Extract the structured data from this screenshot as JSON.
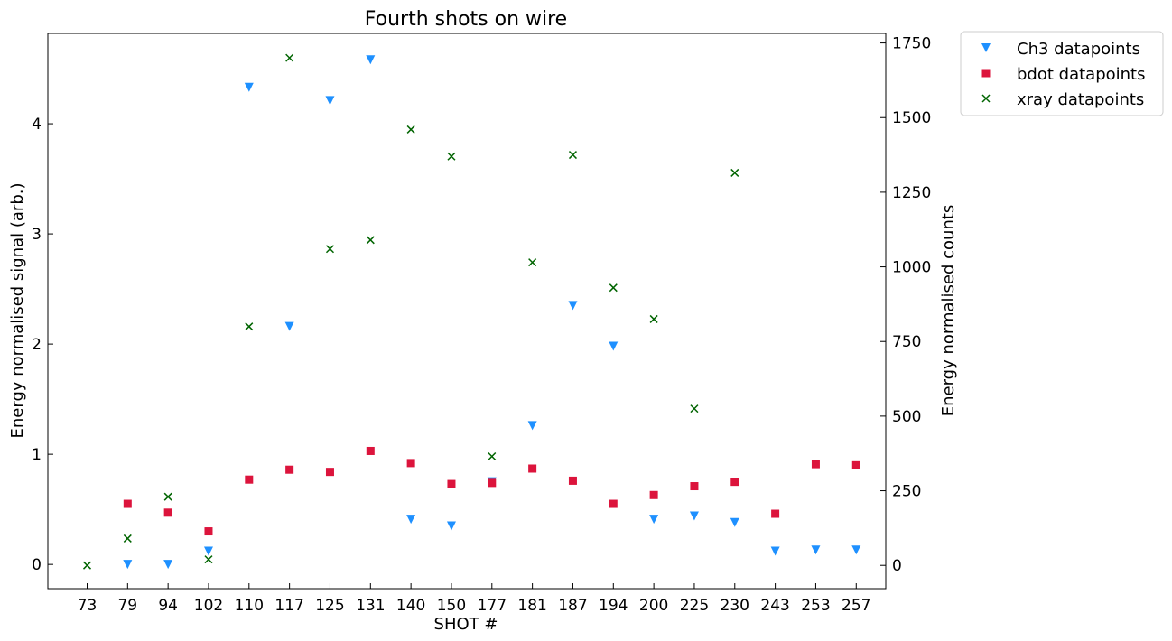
{
  "chart_data": {
    "type": "scatter",
    "title": "Fourth shots on wire",
    "xlabel": "SHOT #",
    "ylabel_left": "Energy normalised signal (arb.)",
    "ylabel_right": "Energy normalised counts",
    "categories": [
      "73",
      "79",
      "94",
      "102",
      "110",
      "117",
      "125",
      "131",
      "140",
      "150",
      "177",
      "181",
      "187",
      "194",
      "200",
      "225",
      "230",
      "243",
      "253",
      "257"
    ],
    "ylim_left": [
      -0.22,
      4.82
    ],
    "ylim_right": [
      -78,
      1782
    ],
    "yticks_left": [
      0,
      1,
      2,
      3,
      4
    ],
    "yticks_right": [
      0,
      250,
      500,
      750,
      1000,
      1250,
      1500,
      1750
    ],
    "legend_position": "outside-top-right",
    "grid": false,
    "series": [
      {
        "name": "Ch3 datapoints",
        "axis": "left",
        "marker": "triangle-down",
        "color": "#1e90ff",
        "values": [
          null,
          0.0,
          0.0,
          0.12,
          4.33,
          2.16,
          4.21,
          4.58,
          0.41,
          0.35,
          0.75,
          1.26,
          2.35,
          1.98,
          0.41,
          0.44,
          0.38,
          0.12,
          0.13,
          0.13
        ]
      },
      {
        "name": "bdot datapoints",
        "axis": "left",
        "marker": "square",
        "color": "#dc143c",
        "values": [
          null,
          0.55,
          0.47,
          0.3,
          0.77,
          0.86,
          0.84,
          1.03,
          0.92,
          0.73,
          0.74,
          0.87,
          0.76,
          0.55,
          0.63,
          0.71,
          0.75,
          0.46,
          0.91,
          0.9
        ]
      },
      {
        "name": "xray datapoints",
        "axis": "right",
        "marker": "x",
        "color": "#006400",
        "values": [
          0,
          90,
          230,
          20,
          800,
          1700,
          1060,
          1090,
          1460,
          1370,
          365,
          1015,
          1375,
          930,
          825,
          525,
          1315,
          null,
          null,
          null
        ]
      }
    ]
  }
}
